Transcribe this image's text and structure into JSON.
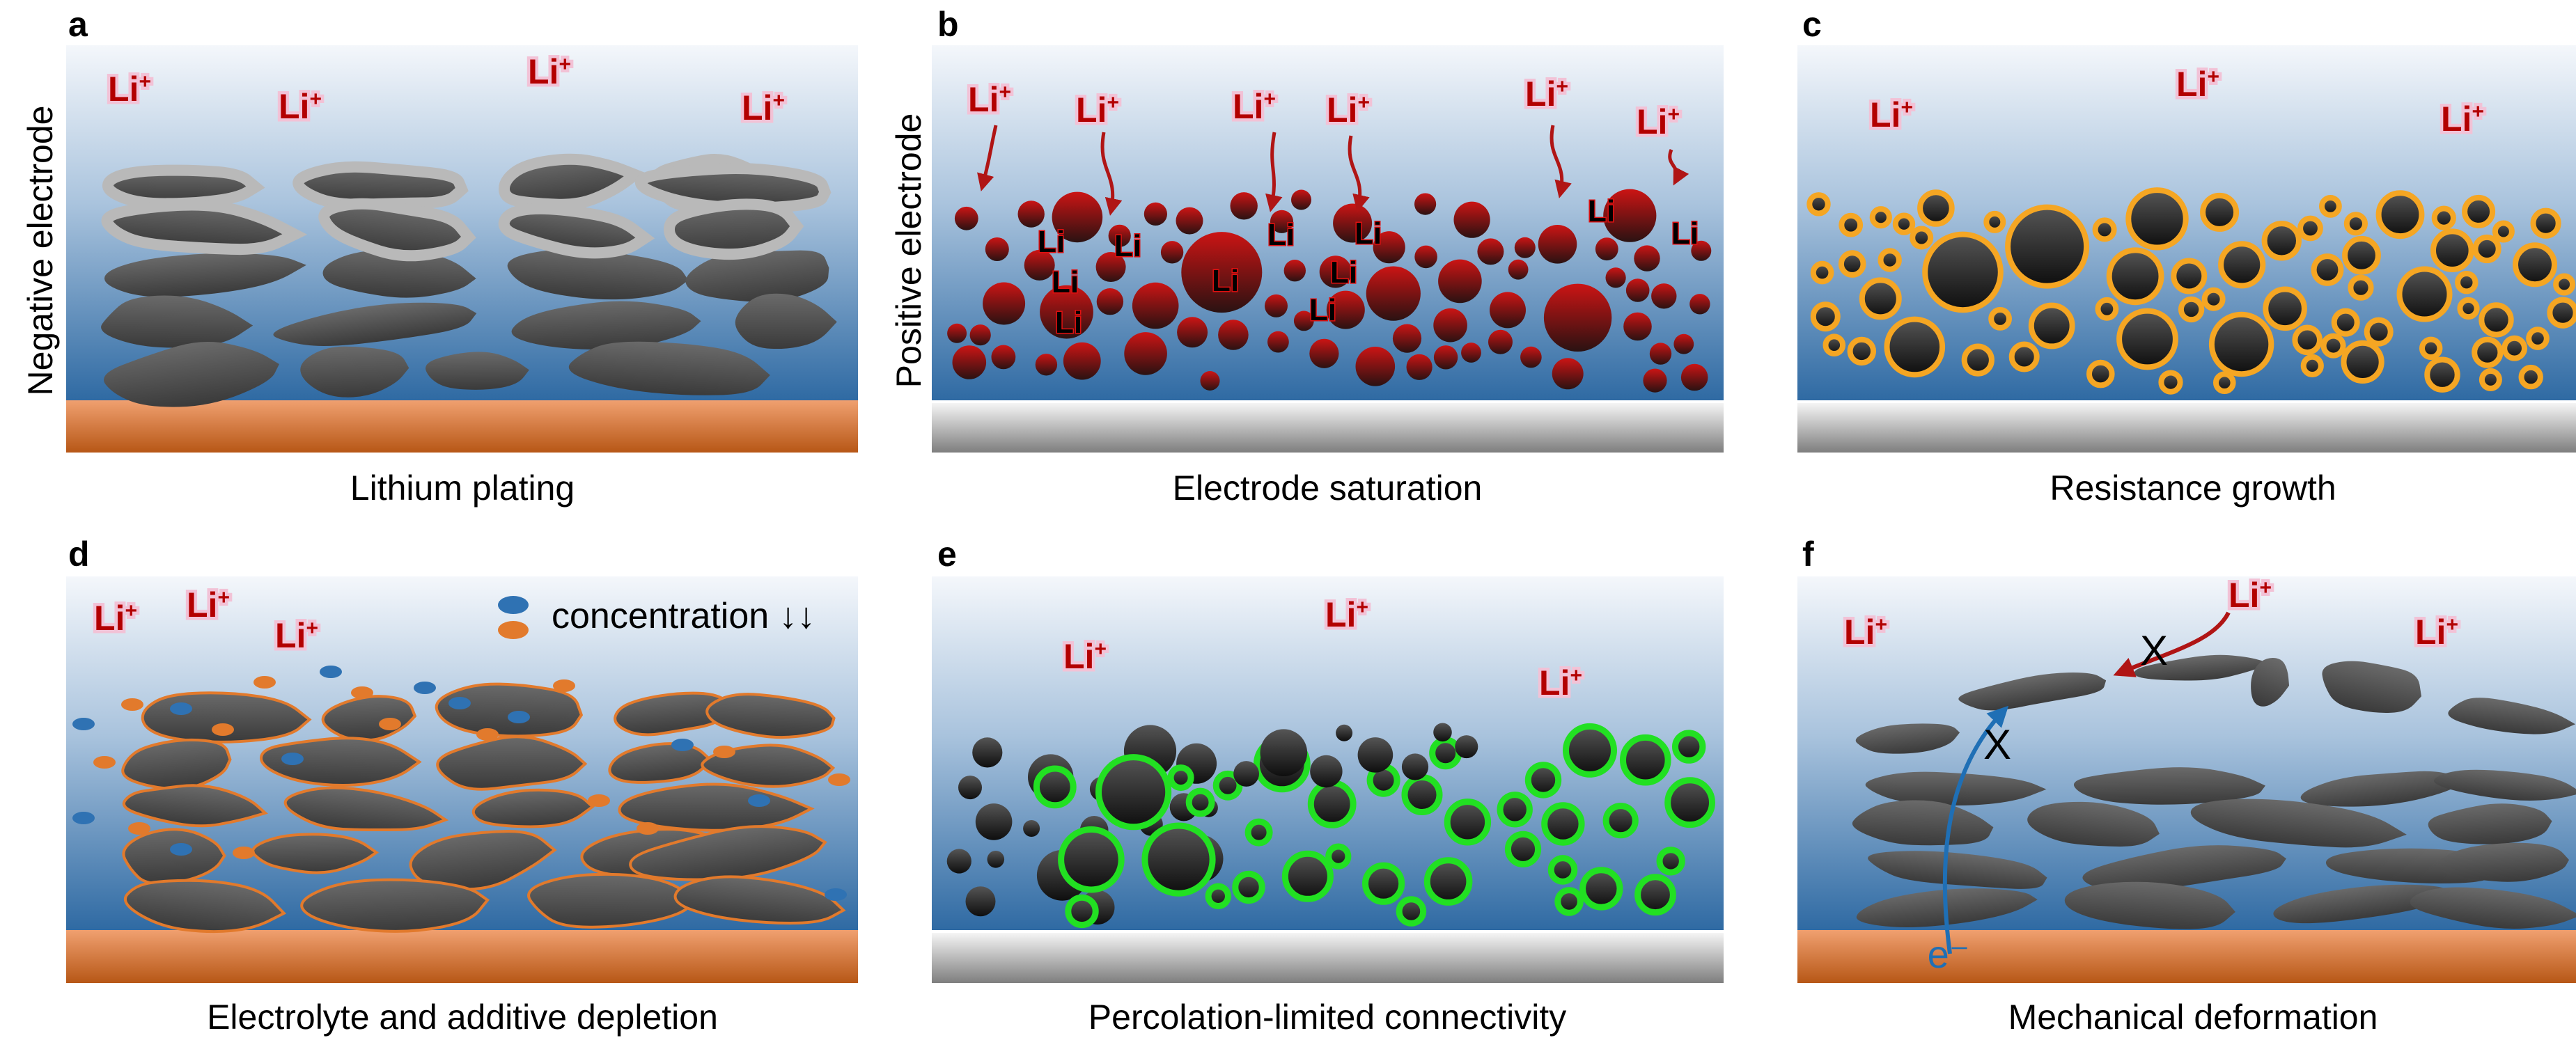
{
  "panels": [
    {
      "letter": "a",
      "caption": "Lithium plating",
      "side_label": "Negative electrode"
    },
    {
      "letter": "b",
      "caption": "Electrode saturation",
      "side_label": "Positive electrode"
    },
    {
      "letter": "c",
      "caption": "Resistance growth"
    },
    {
      "letter": "d",
      "caption": "Electrolyte and additive depletion"
    },
    {
      "letter": "e",
      "caption": "Percolation-limited connectivity"
    },
    {
      "letter": "f",
      "caption": "Mechanical deformation"
    }
  ],
  "ion": {
    "main": "Li",
    "sup": "+"
  },
  "plated_label": "Li",
  "legend": {
    "text": "concentration ↓↓"
  },
  "blocked_mark": "X",
  "electron_label": "e⁻",
  "colors": {
    "electrolyte_top": "#eef3f8",
    "electrolyte_bottom": "#2f6aa3",
    "copper": "#c96a2a",
    "aluminium": "#9a9a9a",
    "particle": "#3b3b3b",
    "saturated_particle": "#b01010",
    "sei_shell": "#f5a623",
    "connected_shell": "#22e022",
    "plating_shell": "#b5b5b5",
    "ion_text": "#b30000",
    "anion_blue": "#2f72b3",
    "anion_orange": "#e27a2c"
  }
}
